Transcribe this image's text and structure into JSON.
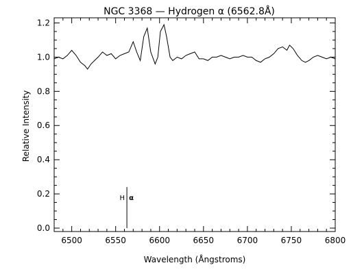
{
  "chart_data": {
    "type": "line",
    "title": "NGC 3368 — Hydrogen α (6562.8Å)",
    "xlabel": "Wavelength (Ångstroms)",
    "ylabel": "Relative Intensity",
    "xlim": [
      6480,
      6800
    ],
    "ylim": [
      -0.02,
      1.23
    ],
    "x_ticks": [
      6500,
      6550,
      6600,
      6650,
      6700,
      6750,
      6800
    ],
    "y_ticks": [
      0.0,
      0.2,
      0.4,
      0.6,
      0.8,
      1.0,
      1.2
    ],
    "grid": false,
    "line_color": "#000000",
    "series": [
      {
        "name": "",
        "x": [
          6480,
          6485,
          6490,
          6495,
          6500,
          6505,
          6510,
          6515,
          6518,
          6522,
          6526,
          6530,
          6535,
          6540,
          6545,
          6550,
          6555,
          6560,
          6565,
          6570,
          6574,
          6578,
          6582,
          6586,
          6590,
          6595,
          6598,
          6601,
          6605,
          6608,
          6612,
          6615,
          6620,
          6625,
          6630,
          6635,
          6640,
          6645,
          6650,
          6655,
          6660,
          6665,
          6670,
          6675,
          6680,
          6685,
          6690,
          6695,
          6700,
          6705,
          6710,
          6715,
          6720,
          6725,
          6730,
          6735,
          6740,
          6745,
          6748,
          6752,
          6757,
          6762,
          6766,
          6770,
          6775,
          6780,
          6785,
          6790,
          6795,
          6800
        ],
        "y": [
          0.99,
          1.0,
          0.99,
          1.01,
          1.04,
          1.01,
          0.97,
          0.95,
          0.93,
          0.96,
          0.98,
          1.0,
          1.03,
          1.01,
          1.02,
          0.99,
          1.01,
          1.02,
          1.03,
          1.09,
          1.03,
          0.98,
          1.12,
          1.17,
          1.03,
          0.96,
          1.0,
          1.15,
          1.19,
          1.12,
          1.0,
          0.98,
          1.0,
          0.99,
          1.01,
          1.02,
          1.03,
          0.99,
          0.99,
          0.98,
          1.0,
          1.0,
          1.01,
          1.0,
          0.99,
          1.0,
          1.0,
          1.01,
          1.0,
          1.0,
          0.98,
          0.97,
          0.99,
          1.0,
          1.02,
          1.05,
          1.06,
          1.04,
          1.07,
          1.05,
          1.01,
          0.98,
          0.97,
          0.98,
          1.0,
          1.01,
          1.0,
          0.99,
          1.0,
          0.99
        ]
      }
    ],
    "annotations": [
      {
        "text": "H",
        "symbol": "α",
        "x": 6562.8,
        "marker_top": 0.24,
        "marker_bottom": 0.0
      }
    ]
  }
}
